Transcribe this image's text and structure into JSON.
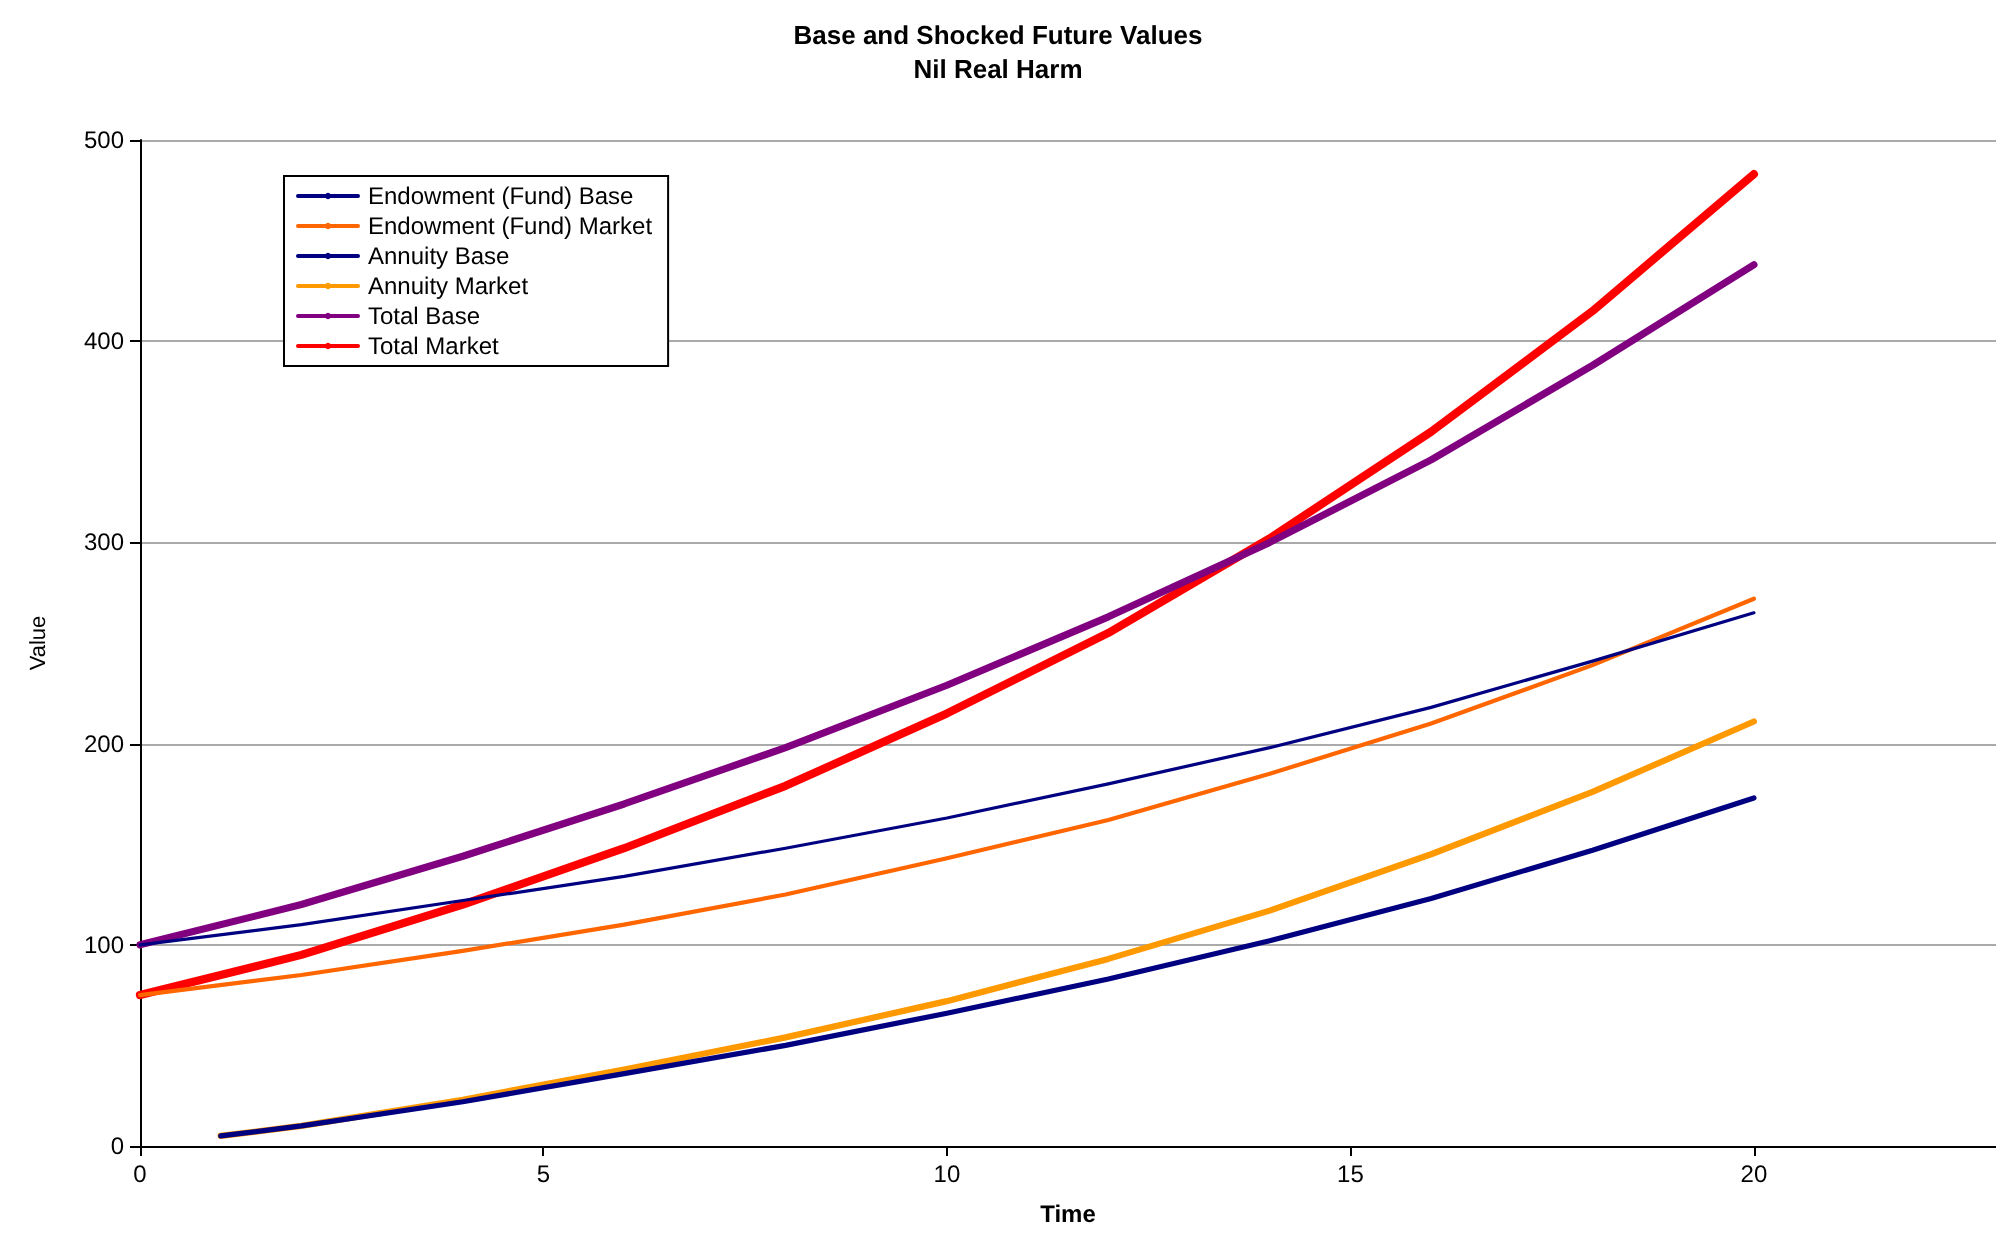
{
  "chart_data": {
    "type": "line",
    "title": "Base and Shocked Future Values",
    "subtitle": "Nil Real Harm",
    "xlabel": "Time",
    "ylabel": "Value",
    "xlim": [
      0,
      23
    ],
    "xticks": [
      0,
      5,
      10,
      15,
      20
    ],
    "ylim": [
      0,
      500
    ],
    "yticks": [
      0,
      100,
      200,
      300,
      400,
      500
    ],
    "grid": "y",
    "legend": "top left",
    "marker": "none",
    "line_style": "solid",
    "series": [
      {
        "name": "Endowment (Fund) Base",
        "color": "#000080",
        "x": [
          0,
          2,
          4,
          6,
          8,
          10,
          12,
          14,
          16,
          18,
          20
        ],
        "values": [
          100,
          110,
          122,
          134,
          148,
          163,
          180,
          198,
          218,
          241,
          265
        ]
      },
      {
        "name": "Endowment (Fund) Market",
        "color": "#ff6600",
        "x": [
          0,
          2,
          4,
          6,
          8,
          10,
          12,
          14,
          16,
          18,
          20
        ],
        "values": [
          75,
          85,
          97,
          110,
          125,
          143,
          162,
          185,
          210,
          239,
          272
        ]
      },
      {
        "name": "Annuity Base",
        "color": "#000080",
        "x": [
          1,
          2,
          4,
          6,
          8,
          10,
          12,
          14,
          16,
          18,
          20
        ],
        "values": [
          5,
          10,
          22,
          36,
          50,
          66,
          83,
          102,
          123,
          147,
          173
        ]
      },
      {
        "name": "Annuity Market",
        "color": "#ff9900",
        "x": [
          1,
          2,
          4,
          6,
          8,
          10,
          12,
          14,
          16,
          18,
          20
        ],
        "values": [
          5,
          10,
          23,
          38,
          54,
          72,
          93,
          117,
          145,
          176,
          211
        ]
      },
      {
        "name": "Total Base",
        "color": "#800080",
        "x": [
          0,
          2,
          4,
          6,
          8,
          10,
          12,
          14,
          16,
          18,
          20
        ],
        "values": [
          100,
          120,
          144,
          170,
          198,
          229,
          263,
          300,
          341,
          388,
          438
        ]
      },
      {
        "name": "Total Market",
        "color": "#ff0000",
        "x": [
          0,
          2,
          4,
          6,
          8,
          10,
          12,
          14,
          16,
          18,
          20
        ],
        "values": [
          75,
          95,
          120,
          148,
          179,
          215,
          255,
          302,
          355,
          415,
          483
        ]
      }
    ]
  }
}
